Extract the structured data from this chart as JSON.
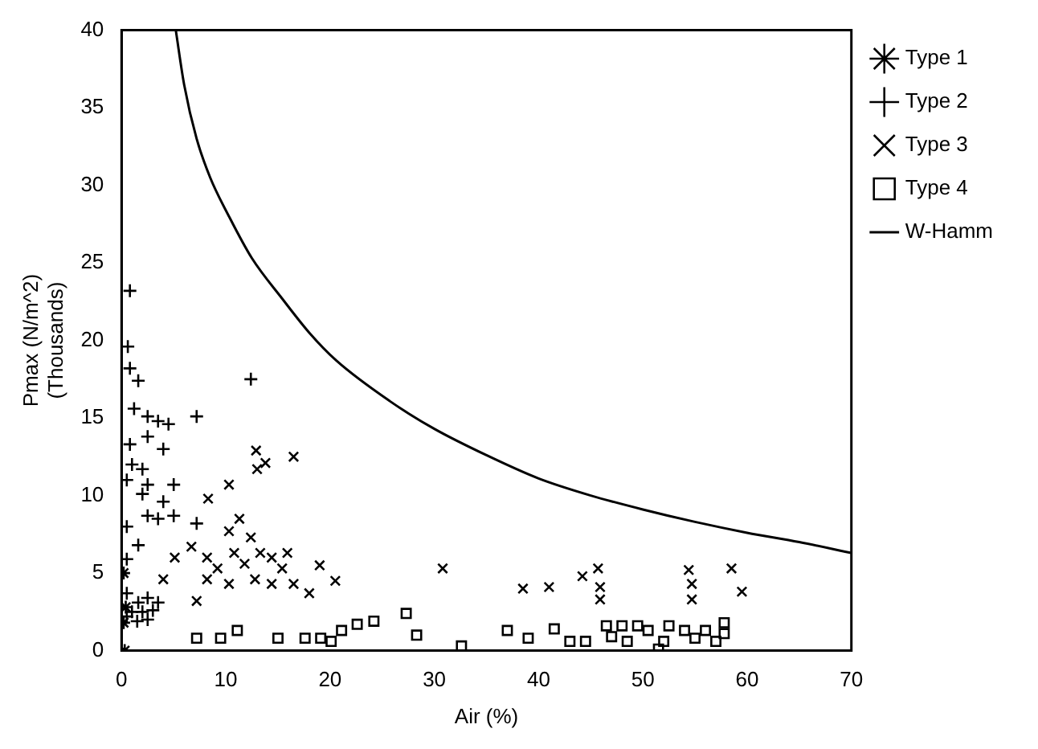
{
  "chart_data": {
    "type": "scatter",
    "xlabel": "Air (%)",
    "ylabel": "Pmax (N/m^2)\n(Thousands)",
    "xlim": [
      0,
      70
    ],
    "xticks": [
      0,
      10,
      20,
      30,
      40,
      50,
      60,
      70
    ],
    "ylim": [
      0,
      40
    ],
    "yticks": [
      0,
      5,
      10,
      15,
      20,
      25,
      30,
      35,
      40
    ],
    "grid": false,
    "legend": "top right",
    "series": [
      {
        "name": "Type 1",
        "color": "#000000",
        "x": [
          0.3,
          0.2,
          0.4,
          0.2
        ],
        "values": [
          0,
          1.8,
          2.8,
          5.0
        ]
      },
      {
        "name": "Type 2",
        "color": "#000000",
        "marker": "plus",
        "x": [
          0.8,
          0.6,
          0.8,
          1.6,
          12.4,
          7.2,
          1.2,
          2.5,
          3.5,
          4.5,
          0.8,
          2.5,
          4,
          1,
          2,
          0.5,
          2.5,
          5,
          2,
          4,
          2.5,
          3.5,
          5,
          0.5,
          1.6,
          0.5,
          0.5,
          1.6,
          2.5,
          3.5,
          1,
          2,
          3,
          0.5,
          1.5,
          2.5,
          7.2
        ],
        "values": [
          23.2,
          19.6,
          18.2,
          17.4,
          17.5,
          15.1,
          15.6,
          15.1,
          14.8,
          14.6,
          13.3,
          13.8,
          13,
          12,
          11.7,
          11,
          10.7,
          10.7,
          10.1,
          9.6,
          8.7,
          8.5,
          8.7,
          8.0,
          6.8,
          5.9,
          3.7,
          3.1,
          3.4,
          3.1,
          2.5,
          2.5,
          2.6,
          2.2,
          1.9,
          2.0,
          8.2
        ]
      },
      {
        "name": "Type 3",
        "color": "#000000",
        "marker": "cross",
        "x": [
          16.5,
          12.9,
          13,
          13.8,
          10.3,
          8.3,
          11.3,
          10.3,
          12.4,
          6.7,
          8.2,
          9.2,
          10.8,
          11.8,
          13.3,
          14.4,
          15.4,
          15.9,
          12.8,
          14.4,
          16.5,
          18,
          19,
          20.5,
          7.2,
          5.1,
          4,
          10.3,
          8.2,
          30.8,
          38.5,
          41,
          44.2,
          45.7,
          45.9,
          45.9,
          54.4,
          54.7,
          54.7,
          58.5,
          59.5
        ],
        "values": [
          12.5,
          12.9,
          11.7,
          12.1,
          10.7,
          9.8,
          8.5,
          7.7,
          7.3,
          6.7,
          6.0,
          5.3,
          6.3,
          5.6,
          6.3,
          6.0,
          5.3,
          6.3,
          4.6,
          4.3,
          4.3,
          3.7,
          5.5,
          4.5,
          3.2,
          6.0,
          4.6,
          4.3,
          4.6,
          5.3,
          4.0,
          4.1,
          4.8,
          5.3,
          4.1,
          3.3,
          5.2,
          4.3,
          3.3,
          5.3,
          3.8
        ]
      },
      {
        "name": "Type 4",
        "color": "#000000",
        "marker": "square",
        "x": [
          7.2,
          9.5,
          11.1,
          15,
          17.6,
          19.1,
          20.1,
          21.1,
          22.6,
          24.2,
          27.3,
          28.3,
          32.6,
          37,
          39,
          41.5,
          43,
          44.5,
          46.5,
          47,
          48,
          49.5,
          48.5,
          50.5,
          52,
          52.5,
          54,
          55,
          56,
          57,
          57.8,
          57.8,
          51.5
        ],
        "values": [
          0.8,
          0.8,
          1.3,
          0.8,
          0.8,
          0.8,
          0.6,
          1.3,
          1.7,
          1.9,
          2.4,
          1.0,
          0.3,
          1.3,
          0.8,
          1.4,
          0.6,
          0.6,
          1.6,
          0.9,
          1.6,
          1.6,
          0.6,
          1.3,
          0.6,
          1.6,
          1.3,
          0.8,
          1.3,
          0.6,
          1.8,
          1.1,
          0.1
        ]
      },
      {
        "name": "W-Hamm",
        "type": "line",
        "color": "#000000",
        "marker": "none",
        "x": [
          5.2,
          6,
          7.2,
          8.5,
          10.3,
          12.5,
          15.4,
          18,
          20.6,
          25.7,
          30,
          35,
          40,
          45,
          50,
          55,
          60,
          65,
          70
        ],
        "values": [
          40,
          36.5,
          33,
          30.5,
          28,
          25.3,
          22.7,
          20.5,
          18.7,
          16.1,
          14.3,
          12.6,
          11.1,
          10,
          9.1,
          8.3,
          7.6,
          7,
          6.3
        ]
      }
    ]
  }
}
